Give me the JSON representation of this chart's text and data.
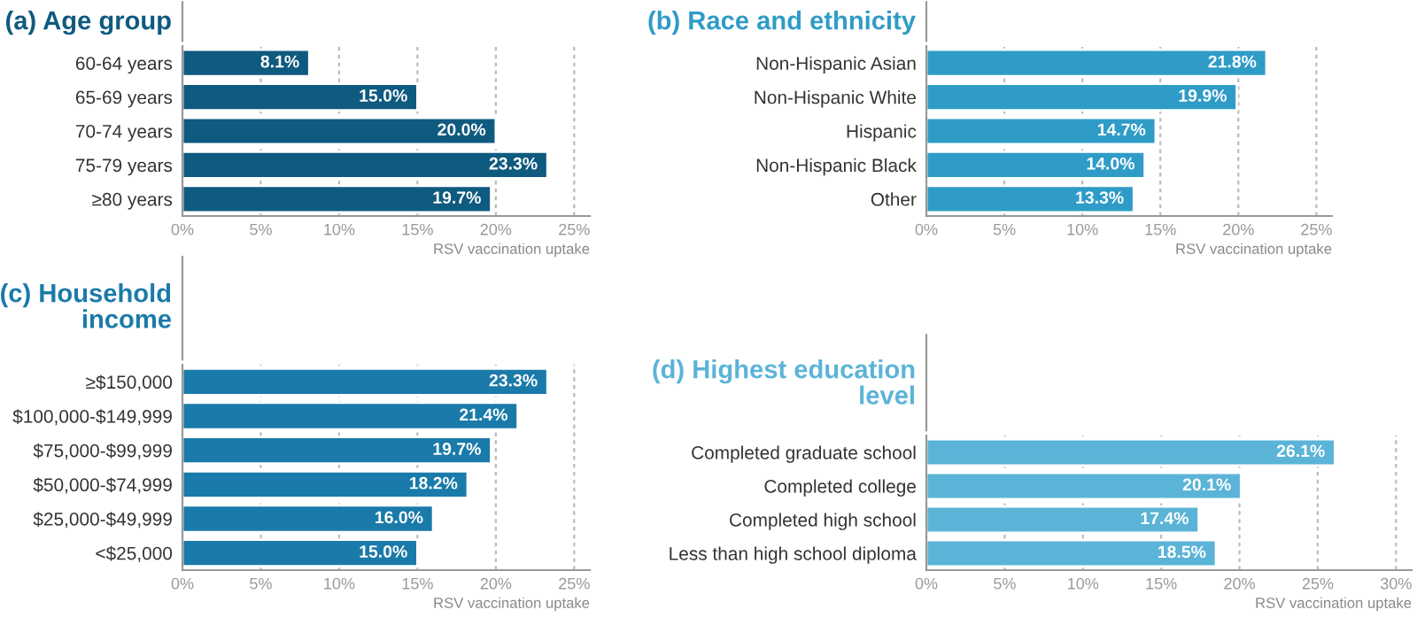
{
  "chart_data": [
    {
      "type": "bar",
      "orientation": "horizontal",
      "title": "(a) Age group",
      "xlabel": "RSV vaccination uptake",
      "categories": [
        "60-64 years",
        "65-69 years",
        "70-74 years",
        "75-79 years",
        "≥80 years"
      ],
      "values": [
        8.1,
        15.0,
        20.0,
        23.3,
        19.7
      ],
      "value_labels": [
        "8.1%",
        "15.0%",
        "20.0%",
        "23.3%",
        "19.7%"
      ],
      "color": "#0f5a7f",
      "xlim": [
        0,
        26
      ],
      "xticks": [
        {
          "value": 0,
          "label": "0%"
        },
        {
          "value": 5,
          "label": "5%"
        },
        {
          "value": 10,
          "label": "10%"
        },
        {
          "value": 15,
          "label": "15%"
        },
        {
          "value": 20,
          "label": "20%"
        },
        {
          "value": 25,
          "label": "25%"
        }
      ],
      "grid": "x"
    },
    {
      "type": "bar",
      "orientation": "horizontal",
      "title": "(b) Race and ethnicity",
      "xlabel": "RSV vaccination uptake",
      "categories": [
        "Non-Hispanic Asian",
        "Non-Hispanic White",
        "Hispanic",
        "Non-Hispanic Black",
        "Other"
      ],
      "values": [
        21.8,
        19.9,
        14.7,
        14.0,
        13.3
      ],
      "value_labels": [
        "21.8%",
        "19.9%",
        "14.7%",
        "14.0%",
        "13.3%"
      ],
      "color": "#2f9cc7",
      "xlim": [
        0,
        26
      ],
      "xticks": [
        {
          "value": 0,
          "label": "0%"
        },
        {
          "value": 5,
          "label": "5%"
        },
        {
          "value": 10,
          "label": "10%"
        },
        {
          "value": 15,
          "label": "15%"
        },
        {
          "value": 20,
          "label": "20%"
        },
        {
          "value": 25,
          "label": "25%"
        }
      ],
      "grid": "x"
    },
    {
      "type": "bar",
      "orientation": "horizontal",
      "title": "(c) Household\nincome",
      "xlabel": "RSV vaccination uptake",
      "categories": [
        "≥$150,000",
        "$100,000-$149,999",
        "$75,000-$99,999",
        "$50,000-$74,999",
        "$25,000-$49,999",
        "<$25,000"
      ],
      "values": [
        23.3,
        21.4,
        19.7,
        18.2,
        16.0,
        15.0
      ],
      "value_labels": [
        "23.3%",
        "21.4%",
        "19.7%",
        "18.2%",
        "16.0%",
        "15.0%"
      ],
      "color": "#1a7aa9",
      "xlim": [
        0,
        26
      ],
      "xticks": [
        {
          "value": 0,
          "label": "0%"
        },
        {
          "value": 5,
          "label": "5%"
        },
        {
          "value": 10,
          "label": "10%"
        },
        {
          "value": 15,
          "label": "15%"
        },
        {
          "value": 20,
          "label": "20%"
        },
        {
          "value": 25,
          "label": "25%"
        }
      ],
      "grid": "x"
    },
    {
      "type": "bar",
      "orientation": "horizontal",
      "title": "(d) Highest education\nlevel",
      "xlabel": "RSV vaccination uptake",
      "categories": [
        "Completed graduate school",
        "Completed college",
        "Completed high school",
        "Less than high school diploma"
      ],
      "values": [
        26.1,
        20.1,
        17.4,
        18.5
      ],
      "value_labels": [
        "26.1%",
        "20.1%",
        "17.4%",
        "18.5%"
      ],
      "color": "#5bb4d7",
      "xlim": [
        0,
        31
      ],
      "xticks": [
        {
          "value": 0,
          "label": "0%"
        },
        {
          "value": 5,
          "label": "5%"
        },
        {
          "value": 10,
          "label": "10%"
        },
        {
          "value": 15,
          "label": "15%"
        },
        {
          "value": 20,
          "label": "20%"
        },
        {
          "value": 25,
          "label": "25%"
        },
        {
          "value": 30,
          "label": "30%"
        }
      ],
      "grid": "x"
    }
  ]
}
